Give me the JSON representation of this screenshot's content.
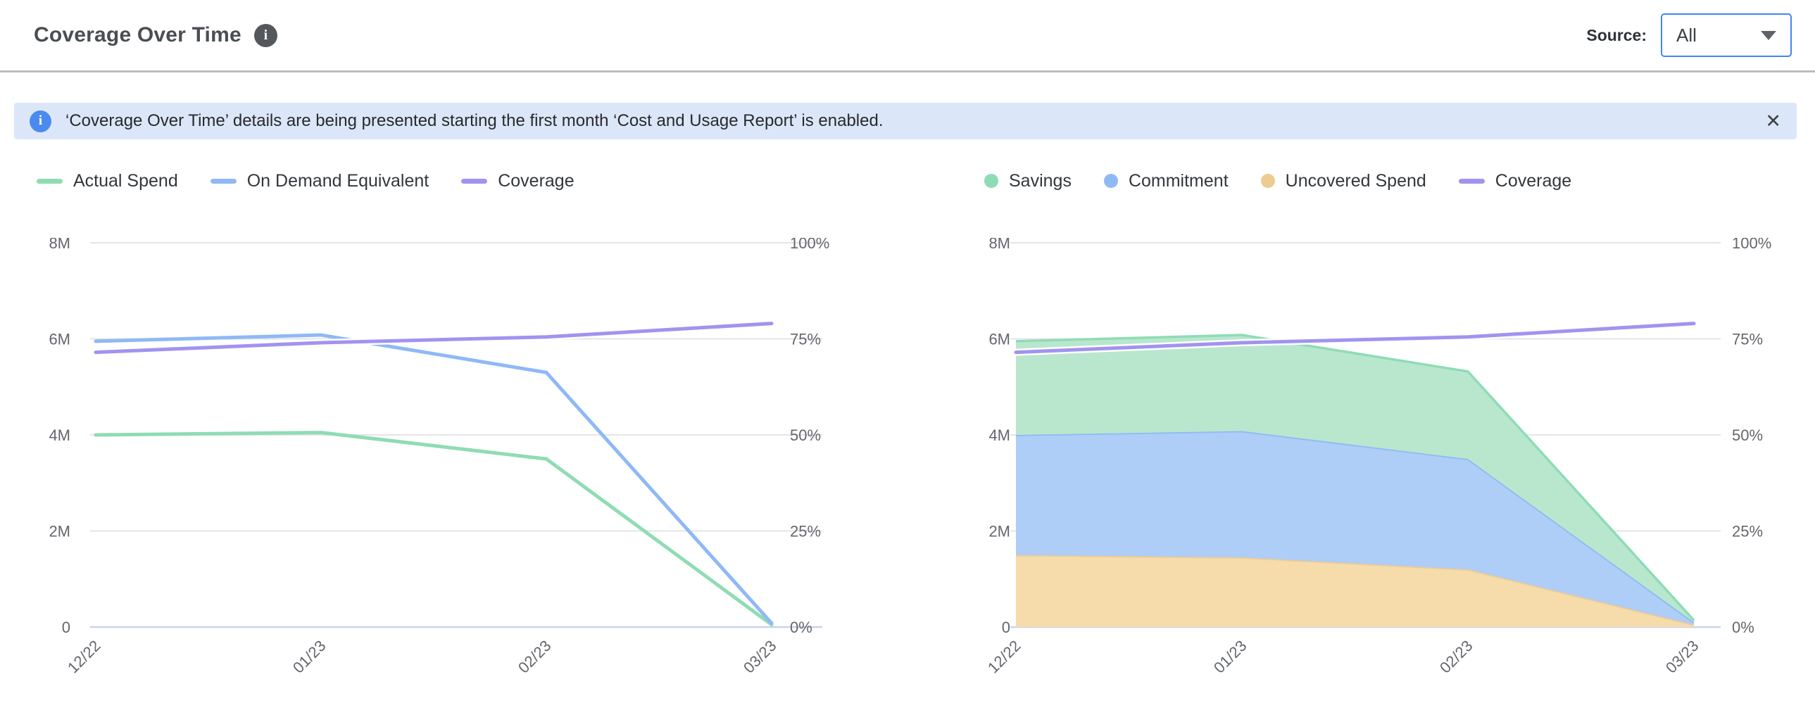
{
  "header": {
    "title": "Coverage Over Time",
    "source_label": "Source:",
    "source_value": "All"
  },
  "icons": {
    "title_info": "i",
    "banner_info": "i",
    "close": "✕"
  },
  "banner": {
    "message": "‘Coverage Over Time’ details are being presented starting the first month ‘Cost and Usage Report’ is enabled."
  },
  "colors": {
    "accent_blue": "#4285f4",
    "banner_bg": "#dbe7f9",
    "green_line": "#8fdcb4",
    "blue_line": "#8fb9f5",
    "purple_line": "#a193f0",
    "green_fill": "#b9e7ce",
    "blue_fill": "#aecdf7",
    "orange_fill": "#f5dcaa",
    "orange_line": "#eecb92"
  },
  "chart_data": [
    {
      "type": "line",
      "title": "",
      "categories": [
        "12/22",
        "01/23",
        "02/23",
        "03/23"
      ],
      "left_axis": {
        "label": "",
        "unit": "millions",
        "max": 8,
        "ticks": [
          "0",
          "2M",
          "4M",
          "6M",
          "8M"
        ]
      },
      "right_axis": {
        "label": "",
        "unit": "percent",
        "max": 100,
        "ticks": [
          "0%",
          "25%",
          "50%",
          "75%",
          "100%"
        ]
      },
      "grid": true,
      "legend_position": "top-left",
      "series": [
        {
          "name": "Actual Spend",
          "axis": "left",
          "swatch": "line",
          "color": "#8fdcb4",
          "values": [
            4.0,
            4.05,
            3.5,
            0.05
          ]
        },
        {
          "name": "On Demand Equivalent",
          "axis": "left",
          "swatch": "line",
          "color": "#8fb9f5",
          "values": [
            5.95,
            6.08,
            5.3,
            0.08
          ]
        },
        {
          "name": "Coverage",
          "axis": "right",
          "swatch": "line",
          "color": "#a193f0",
          "values": [
            71.5,
            74.0,
            75.5,
            79.0
          ]
        }
      ]
    },
    {
      "type": "area",
      "stacked": true,
      "title": "",
      "categories": [
        "12/22",
        "01/23",
        "02/23",
        "03/23"
      ],
      "left_axis": {
        "label": "",
        "unit": "millions",
        "max": 8,
        "ticks": [
          "0",
          "2M",
          "4M",
          "6M",
          "8M"
        ]
      },
      "right_axis": {
        "label": "",
        "unit": "percent",
        "max": 100,
        "ticks": [
          "0%",
          "25%",
          "50%",
          "75%",
          "100%"
        ]
      },
      "grid": true,
      "legend_position": "top-left",
      "stack_note": "stacking order bottom to top: Uncovered Spend, Commitment, Savings",
      "series": [
        {
          "name": "Savings",
          "axis": "left",
          "swatch": "dot",
          "stack": true,
          "color": "#8edcb5",
          "fill": "#b9e7ce",
          "values": [
            1.95,
            2.0,
            1.82,
            0.04
          ]
        },
        {
          "name": "Commitment",
          "axis": "left",
          "swatch": "dot",
          "stack": true,
          "color": "#8fb9f5",
          "fill": "#aecdf7",
          "values": [
            2.5,
            2.63,
            2.3,
            0.05
          ]
        },
        {
          "name": "Uncovered Spend",
          "axis": "left",
          "swatch": "dot",
          "stack": true,
          "color": "#eecb92",
          "fill": "#f5dcaa",
          "values": [
            1.5,
            1.45,
            1.2,
            0.05
          ]
        },
        {
          "name": "Coverage",
          "axis": "right",
          "swatch": "line",
          "color": "#a193f0",
          "values": [
            71.5,
            74.0,
            75.5,
            79.0
          ]
        }
      ]
    }
  ]
}
